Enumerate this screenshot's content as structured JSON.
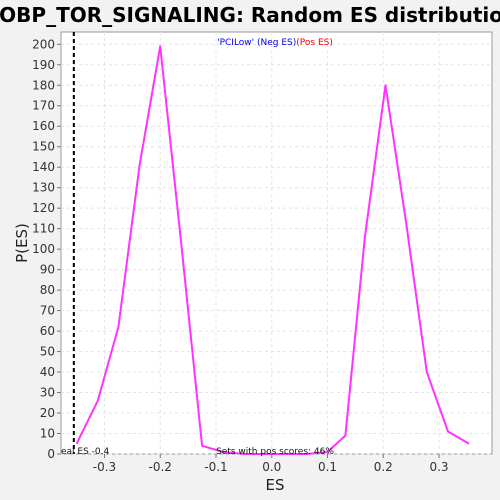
{
  "chart_data": {
    "type": "line",
    "title": "GOBP_TOR_SIGNALING: Random ES distribution",
    "xlabel": "ES",
    "ylabel": "P(ES)",
    "xlim": [
      -0.378,
      0.395
    ],
    "ylim": [
      0,
      206
    ],
    "x_ticks": [
      -0.3,
      -0.2,
      -0.1,
      0.0,
      0.1,
      0.2,
      0.3
    ],
    "x_tick_labels": [
      "-0.3",
      "-0.2",
      "-0.1",
      "0.0",
      "0.1",
      "0.2",
      "0.3"
    ],
    "y_ticks": [
      0,
      10,
      20,
      30,
      40,
      50,
      60,
      70,
      80,
      90,
      100,
      110,
      120,
      130,
      140,
      150,
      160,
      170,
      180,
      190,
      200
    ],
    "y_tick_labels": [
      "0",
      "10",
      "20",
      "30",
      "40",
      "50",
      "60",
      "70",
      "80",
      "90",
      "100",
      "110",
      "120",
      "130",
      "140",
      "150",
      "160",
      "170",
      "180",
      "190",
      "200"
    ],
    "grid": true,
    "series": [
      {
        "color": "#ff33ff",
        "x": [
          -0.35,
          -0.312,
          -0.275,
          -0.237,
          -0.2,
          -0.162,
          -0.125,
          -0.087,
          -0.05,
          -0.012,
          0.025,
          0.063,
          0.1,
          0.132,
          0.167,
          0.204,
          0.241,
          0.278,
          0.316,
          0.354
        ],
        "y": [
          5,
          26,
          62,
          141,
          199,
          102,
          4,
          1,
          0,
          0,
          0,
          0,
          1,
          9,
          106,
          180,
          113,
          40,
          11,
          5
        ]
      }
    ],
    "vline": {
      "x": -0.355,
      "style": "dashed",
      "color": "#000000"
    },
    "legend": {
      "position": "top-center",
      "neg_text": "'PCILow' (Neg ES)",
      "pos_text": "(Pos ES)",
      "neg_color": "#0000ee",
      "pos_color": "#ee0000"
    },
    "annotations": {
      "real_es": "eal ES -0.4",
      "pos_scores": "Sets with pos scores: 46%"
    }
  }
}
